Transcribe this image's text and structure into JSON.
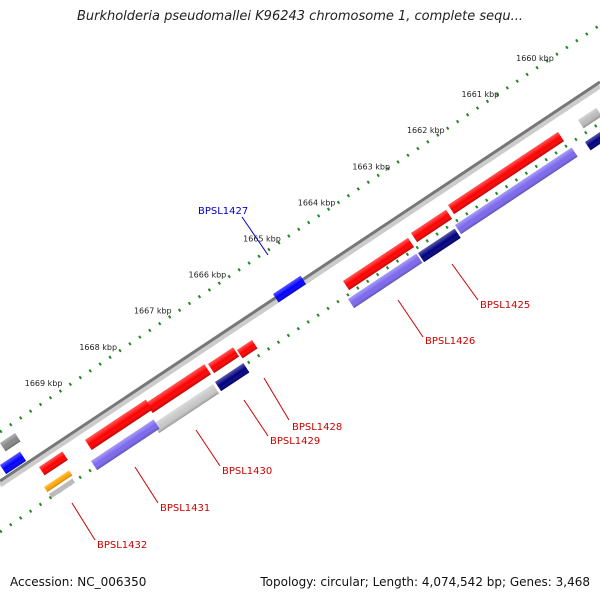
{
  "title": "Burkholderia pseudomallei K96243 chromosome 1, complete sequ...",
  "footer": {
    "accession": "Accession: NC_006350",
    "topology": "Topology: circular; Length: 4,074,542 bp; Genes: 3,468"
  },
  "colors": {
    "forward_cds": "#ff0000",
    "reverse_cds": "#7b68ee",
    "dark_cds": "#000080",
    "blue_feature": "#0000ff",
    "gray_feature": "#bbbbbb",
    "orange_feature": "#ffa500",
    "tick": "#228822"
  },
  "ticks": [
    {
      "label": "1660 kbp"
    },
    {
      "label": "1661 kbp"
    },
    {
      "label": "1662 kbp"
    },
    {
      "label": "1663 kbp"
    },
    {
      "label": "1664 kbp"
    },
    {
      "label": "1665 kbp"
    },
    {
      "label": "1666 kbp"
    },
    {
      "label": "1667 kbp"
    },
    {
      "label": "1668 kbp"
    },
    {
      "label": "1669 kbp"
    }
  ],
  "gene_labels": [
    {
      "name": "BPSL1425",
      "color": "#cc0000"
    },
    {
      "name": "BPSL1426",
      "color": "#cc0000"
    },
    {
      "name": "BPSL1427",
      "color": "#0000cc"
    },
    {
      "name": "BPSL1428",
      "color": "#cc0000"
    },
    {
      "name": "BPSL1429",
      "color": "#cc0000"
    },
    {
      "name": "BPSL1430",
      "color": "#cc0000"
    },
    {
      "name": "BPSL1431",
      "color": "#cc0000"
    },
    {
      "name": "BPSL1432",
      "color": "#cc0000"
    }
  ]
}
